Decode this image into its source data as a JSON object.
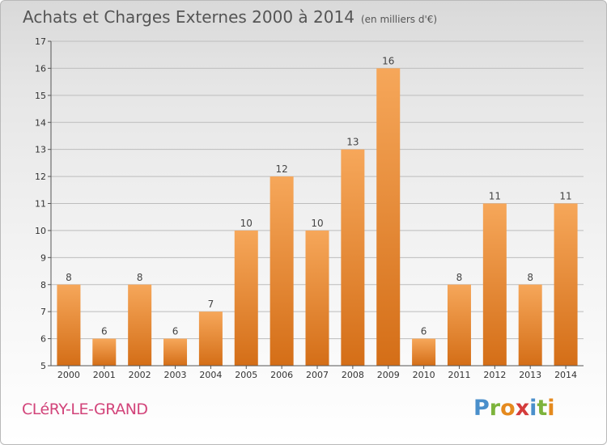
{
  "header": {
    "title": "Achats et Charges Externes 2000 à 2014",
    "unit": "(en milliers d'€)"
  },
  "footer": {
    "commune": "CLéRY-LE-GRAND",
    "logo": "Proxiti"
  },
  "colors": {
    "bar_light": "#f6a75a",
    "bar_dark": "#d46e17",
    "grid": "#bdbdbd",
    "commune": "#d2447a"
  },
  "chart_data": {
    "type": "bar",
    "categories": [
      "2000",
      "2001",
      "2002",
      "2003",
      "2004",
      "2005",
      "2006",
      "2007",
      "2008",
      "2009",
      "2010",
      "2011",
      "2012",
      "2013",
      "2014"
    ],
    "values": [
      8,
      6,
      8,
      6,
      7,
      10,
      12,
      10,
      13,
      16,
      6,
      8,
      11,
      8,
      11
    ],
    "title": "Achats et Charges Externes 2000 à 2014",
    "ylim": [
      5,
      17
    ],
    "yticks": [
      5,
      6,
      7,
      8,
      9,
      10,
      11,
      12,
      13,
      14,
      15,
      16,
      17
    ],
    "grid": true,
    "data_labels": true
  }
}
